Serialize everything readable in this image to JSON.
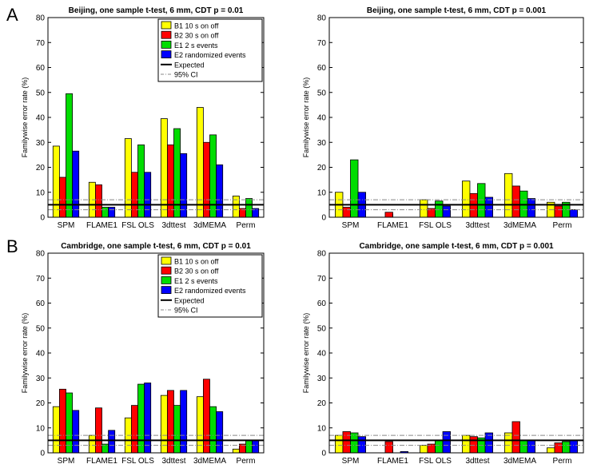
{
  "panel_labels": [
    "A",
    "B"
  ],
  "legend": {
    "entries": [
      {
        "label": "B1 10 s on off",
        "color": "#ffff00",
        "kind": "bar"
      },
      {
        "label": "B2 30 s on off",
        "color": "#ff0000",
        "kind": "bar"
      },
      {
        "label": "E1 2 s events",
        "color": "#00dd00",
        "kind": "bar"
      },
      {
        "label": "E2 randomized events",
        "color": "#0000ff",
        "kind": "bar"
      },
      {
        "label": "Expected",
        "color": "#000000",
        "kind": "solid"
      },
      {
        "label": "95% CI",
        "color": "#888888",
        "kind": "dashdot"
      }
    ]
  },
  "chart_data": [
    {
      "type": "bar",
      "title": "Beijing, one sample t-test, 6 mm, CDT p = 0.01",
      "ylabel": "Familywise error rate (%)",
      "ylim": [
        0,
        80
      ],
      "yticks": [
        "0",
        "10",
        "20",
        "30",
        "40",
        "50",
        "60",
        "70",
        "80"
      ],
      "categories": [
        "SPM",
        "FLAME1",
        "FSL OLS",
        "3dttest",
        "3dMEMA",
        "Perm"
      ],
      "series": [
        {
          "name": "B1 10 s on off",
          "values": [
            28.5,
            14,
            31.5,
            39.5,
            44,
            8.5
          ]
        },
        {
          "name": "B2 30 s on off",
          "values": [
            16,
            13,
            18,
            29,
            30,
            3.5
          ]
        },
        {
          "name": "E1 2 s events",
          "values": [
            49.5,
            4,
            29,
            35.5,
            33,
            7.5
          ]
        },
        {
          "name": "E2 randomized events",
          "values": [
            26.5,
            4,
            18,
            25.5,
            21,
            3.5
          ]
        }
      ],
      "expected": 5,
      "ci": [
        3.0,
        7.0
      ],
      "legend": true
    },
    {
      "type": "bar",
      "title": "Beijing, one sample t-test, 6 mm, CDT p = 0.001",
      "ylabel": "Familywise error rate (%)",
      "ylim": [
        0,
        80
      ],
      "yticks": [
        "0",
        "10",
        "20",
        "30",
        "40",
        "50",
        "60",
        "70",
        "80"
      ],
      "categories": [
        "SPM",
        "FLAME1",
        "FSL OLS",
        "3dttest",
        "3dMEMA",
        "Perm"
      ],
      "series": [
        {
          "name": "B1 10 s on off",
          "values": [
            10,
            0,
            7,
            14.5,
            17.5,
            6
          ]
        },
        {
          "name": "B2 30 s on off",
          "values": [
            4,
            2,
            3.5,
            9.5,
            12.5,
            4.5
          ]
        },
        {
          "name": "E1 2 s events",
          "values": [
            23,
            0,
            6.5,
            13.5,
            10.5,
            6
          ]
        },
        {
          "name": "E2 randomized events",
          "values": [
            10,
            0,
            4.5,
            8,
            7.5,
            3
          ]
        }
      ],
      "expected": 5,
      "ci": [
        3.0,
        7.0
      ],
      "legend": false
    },
    {
      "type": "bar",
      "title": "Cambridge, one sample t-test, 6 mm, CDT p = 0.01",
      "ylabel": "Familywise error rate (%)",
      "ylim": [
        0,
        80
      ],
      "yticks": [
        "0",
        "10",
        "20",
        "30",
        "40",
        "50",
        "60",
        "70",
        "80"
      ],
      "categories": [
        "SPM",
        "FLAME1",
        "FSL OLS",
        "3dttest",
        "3dMEMA",
        "Perm"
      ],
      "series": [
        {
          "name": "B1 10 s on off",
          "values": [
            18.5,
            7,
            14,
            23,
            22.5,
            1.5
          ]
        },
        {
          "name": "B2 30 s on off",
          "values": [
            25.5,
            18,
            19,
            25,
            29.5,
            3.5
          ]
        },
        {
          "name": "E1 2 s events",
          "values": [
            24,
            3.5,
            27.5,
            19,
            18.5,
            5
          ]
        },
        {
          "name": "E2 randomized events",
          "values": [
            17,
            9,
            28,
            25,
            16.5,
            5
          ]
        }
      ],
      "expected": 5,
      "ci": [
        3.0,
        7.0
      ],
      "legend": true
    },
    {
      "type": "bar",
      "title": "Cambridge, one sample t-test, 6 mm, CDT p = 0.001",
      "ylabel": "Familywise error rate (%)",
      "ylim": [
        0,
        80
      ],
      "yticks": [
        "0",
        "10",
        "20",
        "30",
        "40",
        "50",
        "60",
        "70",
        "80"
      ],
      "categories": [
        "SPM",
        "FLAME1",
        "FSL OLS",
        "3dttest",
        "3dMEMA",
        "Perm"
      ],
      "series": [
        {
          "name": "B1 10 s on off",
          "values": [
            7,
            0,
            3,
            7,
            8,
            2
          ]
        },
        {
          "name": "B2 30 s on off",
          "values": [
            8.5,
            4.5,
            3.5,
            6.5,
            12.5,
            4
          ]
        },
        {
          "name": "E1 2 s events",
          "values": [
            8,
            0,
            5,
            6,
            5,
            4.5
          ]
        },
        {
          "name": "E2 randomized events",
          "values": [
            6.5,
            0.5,
            8.5,
            8,
            5,
            5
          ]
        }
      ],
      "expected": 5,
      "ci": [
        3.0,
        7.0
      ],
      "legend": false
    }
  ]
}
